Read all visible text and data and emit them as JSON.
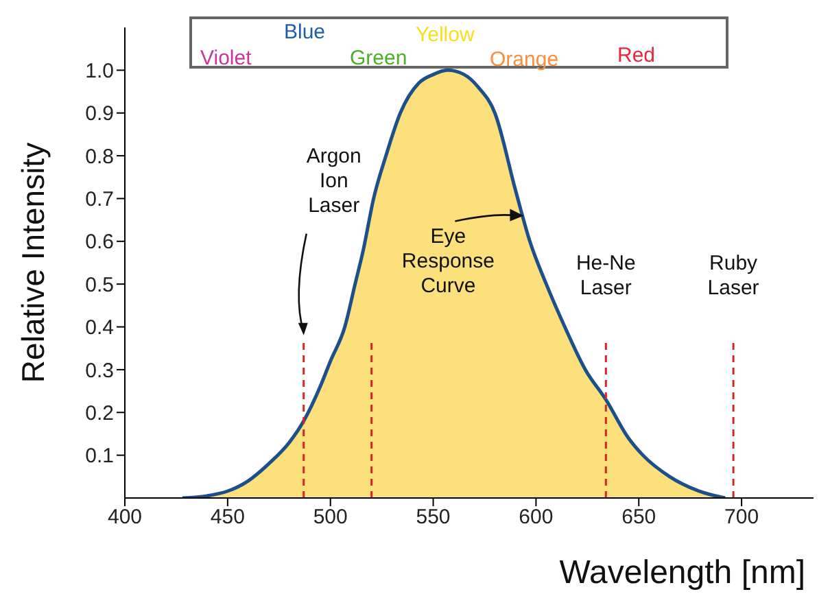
{
  "chart_data": {
    "type": "area",
    "xlabel": "Wavelength [nm]",
    "ylabel": "Relative Intensity",
    "x": [
      428,
      440,
      450,
      460,
      470,
      480,
      487,
      495,
      500,
      507,
      512,
      516,
      521,
      527,
      534,
      543,
      550,
      557,
      565,
      572,
      580,
      590,
      597,
      605,
      614,
      624,
      634,
      645,
      652,
      665,
      680,
      692
    ],
    "series": [
      {
        "color": "#fbe07c",
        "values": [
          0,
          0.005,
          0.016,
          0.04,
          0.08,
          0.13,
          0.18,
          0.26,
          0.32,
          0.4,
          0.5,
          0.58,
          0.7,
          0.8,
          0.9,
          0.97,
          0.99,
          1.0,
          0.99,
          0.96,
          0.9,
          0.72,
          0.6,
          0.5,
          0.4,
          0.3,
          0.23,
          0.14,
          0.1,
          0.05,
          0.015,
          0
        ]
      }
    ],
    "xlim": [
      400,
      735
    ],
    "xticks": [
      400,
      450,
      500,
      550,
      600,
      650,
      700
    ],
    "ylim": [
      0,
      1.1
    ],
    "yticks": [
      0.1,
      0.2,
      0.3,
      0.4,
      0.5,
      0.6,
      0.7,
      0.8,
      0.9,
      {
        "value": 1,
        "label": "1.0"
      }
    ],
    "ref_lines": [
      {
        "axis": "x",
        "value": 487,
        "label": "Argon Ion Laser",
        "color": "#d62728",
        "line_style": "dashed"
      },
      {
        "axis": "x",
        "value": 520,
        "color": "#d62728",
        "line_style": "dashed"
      },
      {
        "axis": "x",
        "value": 634,
        "label": "He-Ne Laser",
        "color": "#d62728",
        "line_style": "dashed"
      },
      {
        "axis": "x",
        "value": 696,
        "label": "Ruby Laser",
        "color": "#d62728",
        "line_style": "dashed"
      }
    ],
    "annotations": [
      {
        "text": "Eye Response Curve",
        "x": 594,
        "y": 0.66
      },
      "Violet",
      "Blue",
      "Green",
      "Yellow",
      "Orange",
      "Red"
    ]
  }
}
